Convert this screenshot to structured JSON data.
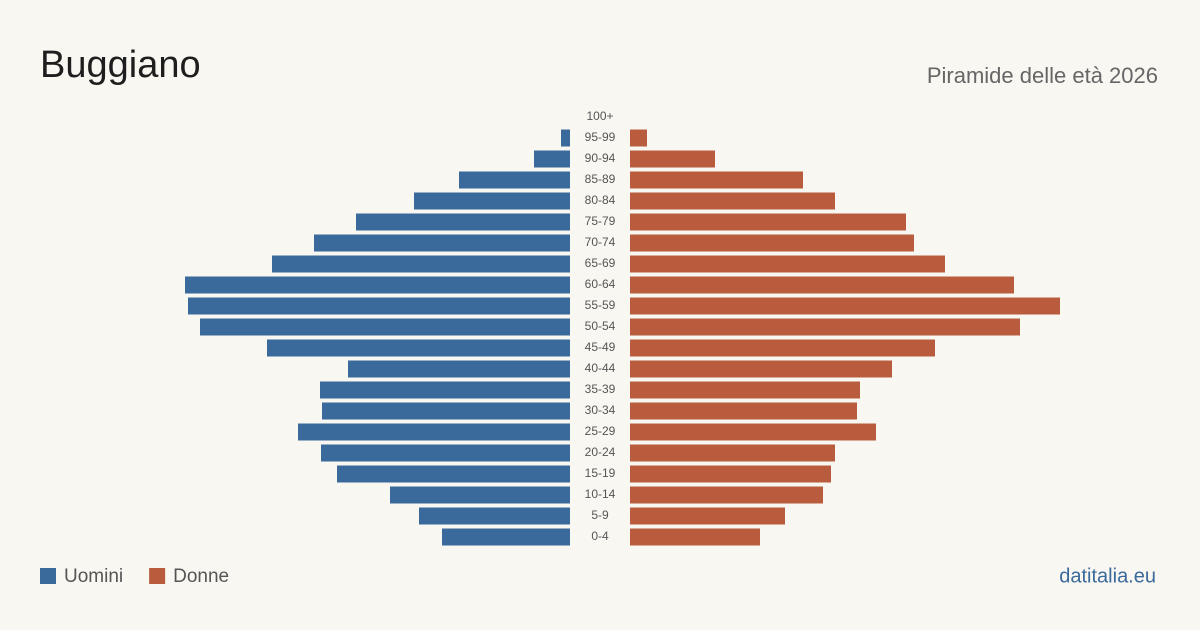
{
  "chart_data": {
    "type": "pyramid",
    "title": "Buggiano",
    "subtitle": "Piramide delle età 2026",
    "source": "datitalia.eu",
    "categories": [
      "100+",
      "95-99",
      "90-94",
      "85-89",
      "80-84",
      "75-79",
      "70-74",
      "65-69",
      "60-64",
      "55-59",
      "50-54",
      "45-49",
      "40-44",
      "35-39",
      "30-34",
      "25-29",
      "20-24",
      "15-19",
      "10-14",
      "5-9",
      "0-4"
    ],
    "series": [
      {
        "name": "Uomini",
        "color": "#3a6a9c",
        "values": [
          0,
          9,
          36,
          111,
          156,
          214,
          256,
          298,
          385,
          382,
          370,
          303,
          222,
          250,
          248,
          272,
          249,
          233,
          180,
          151,
          128
        ]
      },
      {
        "name": "Donne",
        "color": "#b95c3d",
        "values": [
          0,
          17,
          85,
          173,
          205,
          276,
          284,
          315,
          384,
          430,
          390,
          305,
          262,
          230,
          227,
          246,
          205,
          201,
          193,
          155,
          130
        ]
      }
    ]
  }
}
